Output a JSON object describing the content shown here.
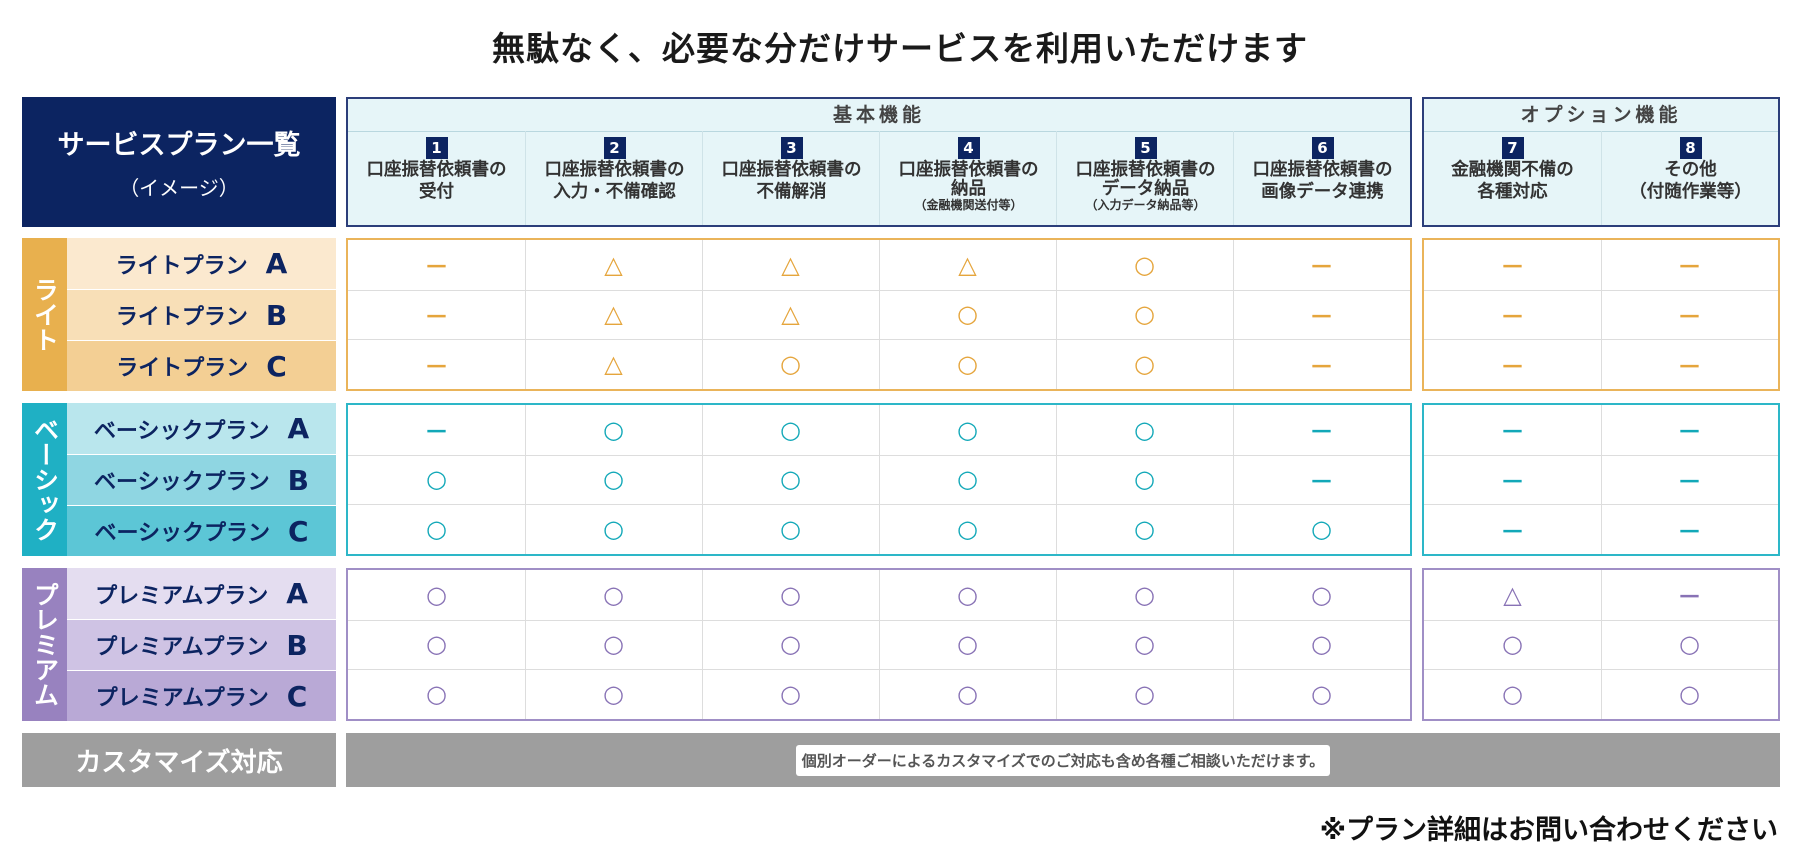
{
  "title": "無駄なく、必要な分だけサービスを利用いただけます",
  "plan_header": {
    "line1": "サービスプラン一覧",
    "line2": "（イメージ）"
  },
  "basic_title": "基本機能",
  "option_title": "オプション機能",
  "features": [
    {
      "num": "1",
      "l1": "口座振替依頼書の",
      "l2": "受付",
      "sub": ""
    },
    {
      "num": "2",
      "l1": "口座振替依頼書の",
      "l2": "入力・不備確認",
      "sub": ""
    },
    {
      "num": "3",
      "l1": "口座振替依頼書の",
      "l2": "不備解消",
      "sub": ""
    },
    {
      "num": "4",
      "l1": "口座振替依頼書の",
      "l2": "納品",
      "sub": "（金融機関送付等）"
    },
    {
      "num": "5",
      "l1": "口座振替依頼書の",
      "l2": "データ納品",
      "sub": "（入力データ納品等）"
    },
    {
      "num": "6",
      "l1": "口座振替依頼書の",
      "l2": "画像データ連携",
      "sub": ""
    },
    {
      "num": "7",
      "l1": "金融機関不備の",
      "l2": "各種対応",
      "sub": ""
    },
    {
      "num": "8",
      "l1": "その他",
      "l2": "（付随作業等）",
      "sub": ""
    }
  ],
  "groups": [
    {
      "category": "ライト",
      "color": "#e8b04e",
      "line": "#eab45a",
      "symbol_color": "#e5a53c",
      "row_bg": [
        "#fbe9cf",
        "#f8dfb7",
        "#f3cf94"
      ],
      "plans": [
        {
          "name": "ライトプラン",
          "letter": "A",
          "values": [
            "－",
            "△",
            "△",
            "△",
            "○",
            "－",
            "－",
            "－"
          ]
        },
        {
          "name": "ライトプラン",
          "letter": "B",
          "values": [
            "－",
            "△",
            "△",
            "○",
            "○",
            "－",
            "－",
            "－"
          ]
        },
        {
          "name": "ライトプラン",
          "letter": "C",
          "values": [
            "－",
            "△",
            "○",
            "○",
            "○",
            "－",
            "－",
            "－"
          ]
        }
      ]
    },
    {
      "category": "ベーシック",
      "color": "#1fb0c4",
      "line": "#2db7c8",
      "symbol_color": "#12a8b8",
      "row_bg": [
        "#b9e6ed",
        "#8fd6e2",
        "#5cc6d6"
      ],
      "plans": [
        {
          "name": "ベーシックプラン",
          "letter": "A",
          "values": [
            "－",
            "○",
            "○",
            "○",
            "○",
            "－",
            "－",
            "－"
          ]
        },
        {
          "name": "ベーシックプラン",
          "letter": "B",
          "values": [
            "○",
            "○",
            "○",
            "○",
            "○",
            "－",
            "－",
            "－"
          ]
        },
        {
          "name": "ベーシックプラン",
          "letter": "C",
          "values": [
            "○",
            "○",
            "○",
            "○",
            "○",
            "○",
            "－",
            "－"
          ]
        }
      ]
    },
    {
      "category": "プレミアム",
      "color": "#9882bf",
      "line": "#a08fc6",
      "symbol_color": "#8872b5",
      "row_bg": [
        "#e4ddf0",
        "#cfc3e4",
        "#b9a9d6"
      ],
      "plans": [
        {
          "name": "プレミアムプラン",
          "letter": "A",
          "values": [
            "○",
            "○",
            "○",
            "○",
            "○",
            "○",
            "△",
            "－"
          ]
        },
        {
          "name": "プレミアムプラン",
          "letter": "B",
          "values": [
            "○",
            "○",
            "○",
            "○",
            "○",
            "○",
            "○",
            "○"
          ]
        },
        {
          "name": "プレミアムプラン",
          "letter": "C",
          "values": [
            "○",
            "○",
            "○",
            "○",
            "○",
            "○",
            "○",
            "○"
          ]
        }
      ]
    }
  ],
  "customize": {
    "label": "カスタマイズ対応",
    "text": "個別オーダーによるカスタマイズでのご対応も含め各種ご相談いただけます。"
  },
  "footer": "※プラン詳細はお問い合わせください",
  "colors": {
    "navy": "#0c2461",
    "gray": "#9e9e9e",
    "header_bg": "#e6f5f8"
  }
}
